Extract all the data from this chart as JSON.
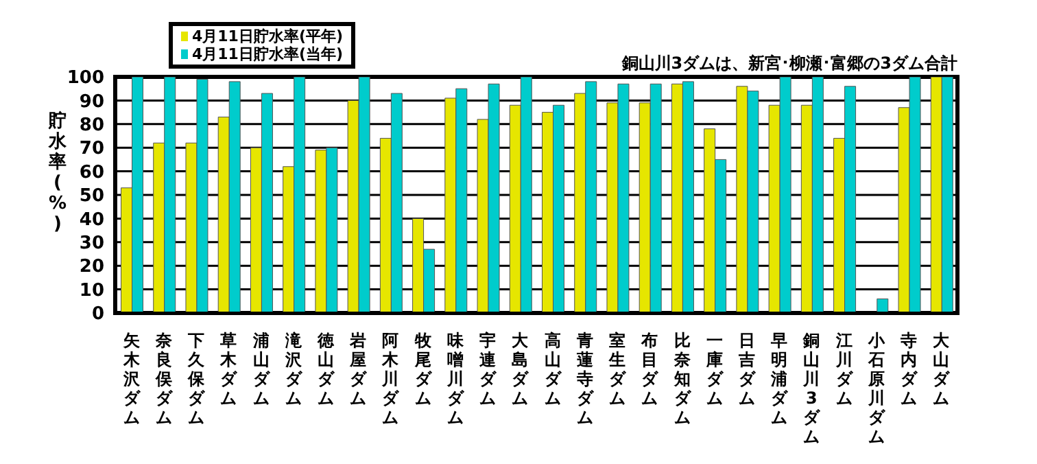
{
  "chart_data": {
    "type": "bar",
    "ylabel": "貯水率(%)",
    "annotations": [
      "銅山川3ダムは、新宮･柳瀬･富郷の3ダム合計"
    ],
    "categories": [
      "矢木沢ダム",
      "奈良俣ダム",
      "下久保ダム",
      "草木ダム",
      "浦山ダム",
      "滝沢ダム",
      "徳山ダム",
      "岩屋ダム",
      "阿木川ダム",
      "牧尾ダム",
      "味噌川ダム",
      "宇連ダム",
      "大島ダム",
      "高山ダム",
      "青蓮寺ダム",
      "室生ダム",
      "布目ダム",
      "比奈知ダム",
      "一庫ダム",
      "日吉ダム",
      "早明浦ダム",
      "銅山川3ダム",
      "江川ダム",
      "小石原川ダム",
      "寺内ダム",
      "大山ダム"
    ],
    "series": [
      {
        "name": "4月11日貯水率(平年)",
        "color": "#e6e600",
        "values": [
          53,
          72,
          72,
          83,
          70,
          62,
          69,
          90,
          74,
          40,
          91,
          82,
          88,
          85,
          93,
          89,
          89,
          97,
          78,
          96,
          88,
          88,
          74,
          0,
          87,
          100
        ]
      },
      {
        "name": "4月11日貯水率(当年)",
        "color": "#00cccc",
        "values": [
          100,
          100,
          99,
          98,
          93,
          100,
          70,
          100,
          93,
          27,
          95,
          97,
          100,
          88,
          98,
          97,
          97,
          98,
          65,
          94,
          100,
          100,
          96,
          6,
          100,
          100
        ]
      }
    ],
    "ylim": [
      0,
      100
    ],
    "yticks": [
      0,
      10,
      20,
      30,
      40,
      50,
      60,
      70,
      80,
      90,
      100
    ],
    "grid": "y",
    "legend": "top left"
  }
}
